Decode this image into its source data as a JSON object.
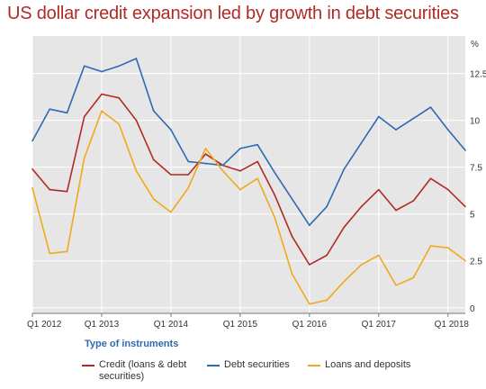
{
  "chart_data": {
    "type": "line",
    "title": "US dollar credit expansion led by growth in debt securities",
    "y_unit": "%",
    "x": [
      "Q1 2012",
      "Q2 2012",
      "Q3 2012",
      "Q4 2012",
      "Q1 2013",
      "Q2 2013",
      "Q3 2013",
      "Q4 2013",
      "Q1 2014",
      "Q2 2014",
      "Q3 2014",
      "Q4 2014",
      "Q1 2015",
      "Q2 2015",
      "Q3 2015",
      "Q4 2015",
      "Q1 2016",
      "Q2 2016",
      "Q3 2016",
      "Q4 2016",
      "Q1 2017",
      "Q2 2017",
      "Q3 2017",
      "Q4 2017",
      "Q1 2018",
      "Q2 2018"
    ],
    "x_tick_labels": [
      "Q1 2012",
      "Q1 2013",
      "Q1 2014",
      "Q1 2015",
      "Q1 2016",
      "Q1 2017",
      "Q1 2018"
    ],
    "y_ticks": [
      "0",
      "2.5",
      "5",
      "7.5",
      "10",
      "12.5"
    ],
    "ylim": [
      -0.3,
      14.5
    ],
    "grid": true,
    "legend_title": "Type of instruments",
    "legend_position": "bottom",
    "series": [
      {
        "name": "Credit (loans & debt securities)",
        "color": "#b22a24",
        "values": [
          7.4,
          6.3,
          6.2,
          10.2,
          11.4,
          11.2,
          10.0,
          7.9,
          7.1,
          7.1,
          8.2,
          7.6,
          7.3,
          7.8,
          6.0,
          3.8,
          2.3,
          2.8,
          4.3,
          5.4,
          6.3,
          5.2,
          5.7,
          6.9,
          6.3,
          5.4
        ]
      },
      {
        "name": "Debt securities",
        "color": "#2e6ab1",
        "values": [
          8.9,
          10.6,
          10.4,
          12.9,
          12.6,
          12.9,
          13.3,
          10.5,
          9.5,
          7.8,
          7.7,
          7.6,
          8.5,
          8.7,
          7.2,
          5.8,
          4.4,
          5.4,
          7.4,
          8.8,
          10.2,
          9.5,
          10.1,
          10.7,
          9.5,
          8.4
        ]
      },
      {
        "name": "Loans and deposits",
        "color": "#f0a91c",
        "values": [
          6.4,
          2.9,
          3.0,
          8.0,
          10.5,
          9.8,
          7.3,
          5.8,
          5.1,
          6.4,
          8.5,
          7.3,
          6.3,
          6.9,
          4.8,
          1.8,
          0.2,
          0.4,
          1.4,
          2.3,
          2.8,
          1.2,
          1.6,
          3.3,
          3.2,
          2.5
        ]
      }
    ]
  }
}
